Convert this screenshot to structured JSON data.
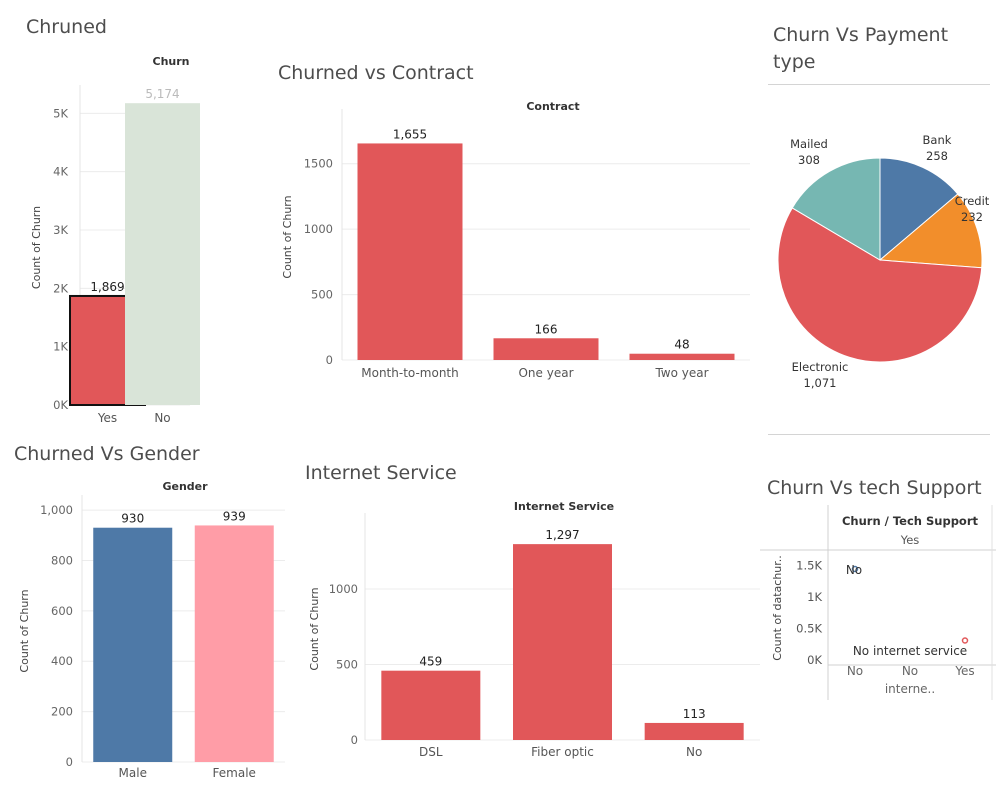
{
  "dashboard": {
    "titles": {
      "churned": "Chruned",
      "contract": "Churned vs Contract",
      "payment": "Churn Vs Payment type",
      "gender": "Churned Vs Gender",
      "internet": "Internet Service",
      "tech": "Churn Vs tech Support"
    }
  },
  "chart_data": [
    {
      "id": "churn",
      "type": "bar",
      "title": "Churn",
      "ylabel": "Count of Churn",
      "categories": [
        "Yes",
        "No"
      ],
      "values": [
        1869,
        5174
      ],
      "value_labels": [
        "1,869",
        "5,174"
      ],
      "colors": [
        "#e15759",
        "#d9e4d8"
      ],
      "highlighted": "Yes",
      "ylim": [
        0,
        5400
      ],
      "yticks": [
        0,
        1000,
        2000,
        3000,
        4000,
        5000
      ],
      "ytick_labels": [
        "0K",
        "1K",
        "2K",
        "3K",
        "4K",
        "5K"
      ],
      "grid": true
    },
    {
      "id": "contract",
      "type": "bar",
      "title": "Contract",
      "ylabel": "Count of Churn",
      "categories": [
        "Month-to-month",
        "One year",
        "Two year"
      ],
      "values": [
        1655,
        166,
        48
      ],
      "value_labels": [
        "1,655",
        "166",
        "48"
      ],
      "colors": [
        "#e15759",
        "#e15759",
        "#e15759"
      ],
      "ylim": [
        0,
        1880
      ],
      "yticks": [
        0,
        500,
        1000,
        1500
      ],
      "ytick_labels": [
        "0",
        "500",
        "1000",
        "1500"
      ],
      "grid": true
    },
    {
      "id": "payment",
      "type": "pie",
      "slices": [
        {
          "name": "Bank",
          "value": 258,
          "label": "258",
          "color": "#4e79a7"
        },
        {
          "name": "Credit",
          "value": 232,
          "label": "232",
          "color": "#f28e2b"
        },
        {
          "name": "Electronic",
          "value": 1071,
          "label": "1,071",
          "color": "#e15759"
        },
        {
          "name": "Mailed",
          "value": 308,
          "label": "308",
          "color": "#76b7b2"
        }
      ]
    },
    {
      "id": "gender",
      "type": "bar",
      "title": "Gender",
      "ylabel": "Count of Churn",
      "categories": [
        "Male",
        "Female"
      ],
      "values": [
        930,
        939
      ],
      "value_labels": [
        "930",
        "939"
      ],
      "colors": [
        "#4e79a7",
        "#ff9da7"
      ],
      "ylim": [
        0,
        1040
      ],
      "yticks": [
        0,
        200,
        400,
        600,
        800,
        1000
      ],
      "ytick_labels": [
        "0",
        "200",
        "400",
        "600",
        "800",
        "1,000"
      ],
      "grid": true
    },
    {
      "id": "internet",
      "type": "bar",
      "title": "Internet Service",
      "ylabel": "Count of Churn",
      "categories": [
        "DSL",
        "Fiber optic",
        "No"
      ],
      "values": [
        459,
        1297,
        113
      ],
      "value_labels": [
        "459",
        "1,297",
        "113"
      ],
      "colors": [
        "#e15759",
        "#e15759",
        "#e15759"
      ],
      "ylim": [
        0,
        1470
      ],
      "yticks": [
        0,
        500,
        1000
      ],
      "ytick_labels": [
        "0",
        "500",
        "1000"
      ],
      "grid": true
    },
    {
      "id": "tech",
      "type": "scatter",
      "header": "Churn / Tech Support",
      "column_header": "Yes",
      "ylabel": "Count of datachur..",
      "x_categories": [
        "No",
        "No interne..",
        "Yes"
      ],
      "ylim": [
        0,
        1700
      ],
      "yticks": [
        0,
        500,
        1000,
        1500
      ],
      "ytick_labels": [
        "0K",
        "0.5K",
        "1K",
        "1.5K"
      ],
      "points": [
        {
          "x": "No",
          "y": 1446,
          "label": "No",
          "color": "#4e79a7"
        },
        {
          "x": "Yes",
          "y": 310,
          "label": "No internet service",
          "color": "#e15759"
        }
      ]
    }
  ]
}
